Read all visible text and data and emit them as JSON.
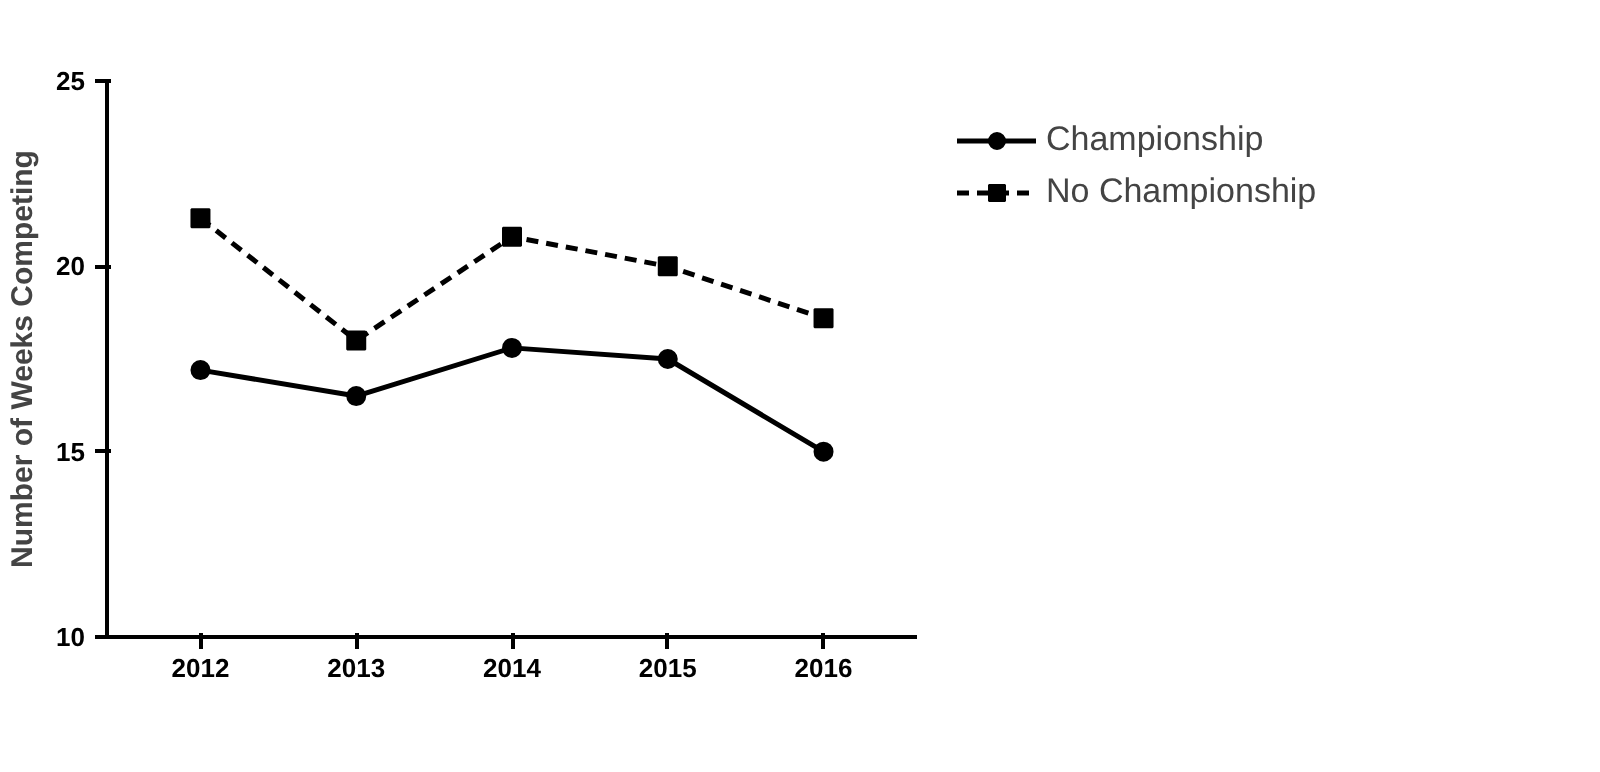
{
  "chart_data": {
    "type": "line",
    "ylabel": "Number of Weeks Competing",
    "categories": [
      "2012",
      "2013",
      "2014",
      "2015",
      "2016"
    ],
    "series": [
      {
        "name": "Championship",
        "color": "#000000",
        "values": [
          17.2,
          16.5,
          17.8,
          17.5,
          15.0
        ],
        "marker": "circle",
        "line_style": "solid"
      },
      {
        "name": "No Championship",
        "color": "#000000",
        "values": [
          21.3,
          18.0,
          20.8,
          20.0,
          18.6
        ],
        "marker": "square",
        "line_style": "dashed"
      }
    ],
    "ylim": [
      10,
      25
    ],
    "yticks": [
      10,
      15,
      20,
      25
    ],
    "grid": false,
    "legend": "top right"
  }
}
